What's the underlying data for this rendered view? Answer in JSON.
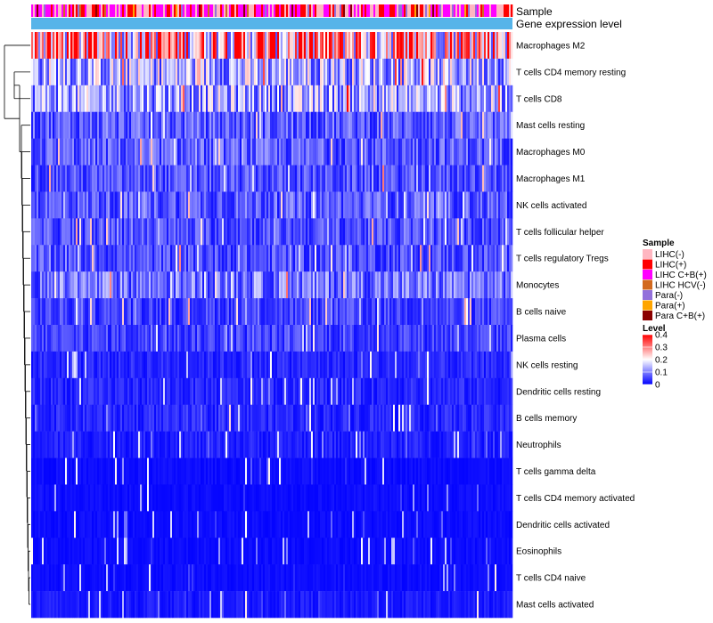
{
  "chart_data": {
    "type": "heatmap",
    "column_annotations": [
      "Sample",
      "Gene expression level"
    ],
    "rows": [
      {
        "label": "Macrophages M2",
        "mean": 0.27
      },
      {
        "label": "T cells CD4 memory resting",
        "mean": 0.14
      },
      {
        "label": "T cells CD8",
        "mean": 0.13
      },
      {
        "label": "Mast cells resting",
        "mean": 0.07
      },
      {
        "label": "Macrophages M0",
        "mean": 0.07
      },
      {
        "label": "Macrophages M1",
        "mean": 0.06
      },
      {
        "label": "NK cells activated",
        "mean": 0.07
      },
      {
        "label": "T cells follicular helper",
        "mean": 0.06
      },
      {
        "label": "T cells regulatory  Tregs",
        "mean": 0.06
      },
      {
        "label": "Monocytes",
        "mean": 0.09
      },
      {
        "label": "B cells naive",
        "mean": 0.05
      },
      {
        "label": "Plasma cells",
        "mean": 0.05
      },
      {
        "label": "NK cells resting",
        "mean": 0.03
      },
      {
        "label": "Dendritic cells resting",
        "mean": 0.03
      },
      {
        "label": "B cells memory",
        "mean": 0.03
      },
      {
        "label": "Neutrophils",
        "mean": 0.025
      },
      {
        "label": "T cells gamma delta",
        "mean": 0.01
      },
      {
        "label": "T cells CD4 memory activated",
        "mean": 0.01
      },
      {
        "label": "Dendritic cells activated",
        "mean": 0.01
      },
      {
        "label": "Eosinophils",
        "mean": 0.01
      },
      {
        "label": "T cells CD4 naive",
        "mean": 0.01
      },
      {
        "label": "Mast cells activated",
        "mean": 0.02
      }
    ],
    "sample_legend": {
      "title": "Sample",
      "items": [
        {
          "label": "LIHC(-)",
          "color": "#FFB6C1",
          "weight": 3
        },
        {
          "label": "LIHC(+)",
          "color": "#FF0000",
          "weight": 2
        },
        {
          "label": "LIHC C+B(+)",
          "color": "#FF00FF",
          "weight": 3
        },
        {
          "label": "LIHC HCV(-)",
          "color": "#D2691E",
          "weight": 0.3
        },
        {
          "label": "Para(-)",
          "color": "#9370DB",
          "weight": 0.5
        },
        {
          "label": "Para(+)",
          "color": "#FFA500",
          "weight": 0.3
        },
        {
          "label": "Para C+B(+)",
          "color": "#8B0000",
          "weight": 0.3
        }
      ]
    },
    "gene_expression_color": "#56B4E9",
    "level_legend": {
      "title": "Level",
      "ticks": [
        0.4,
        0.3,
        0.2,
        0.1,
        0
      ],
      "colors": [
        "#0000FF",
        "#FFFFFF",
        "#FF0000"
      ],
      "range": [
        0,
        0.4
      ]
    }
  }
}
